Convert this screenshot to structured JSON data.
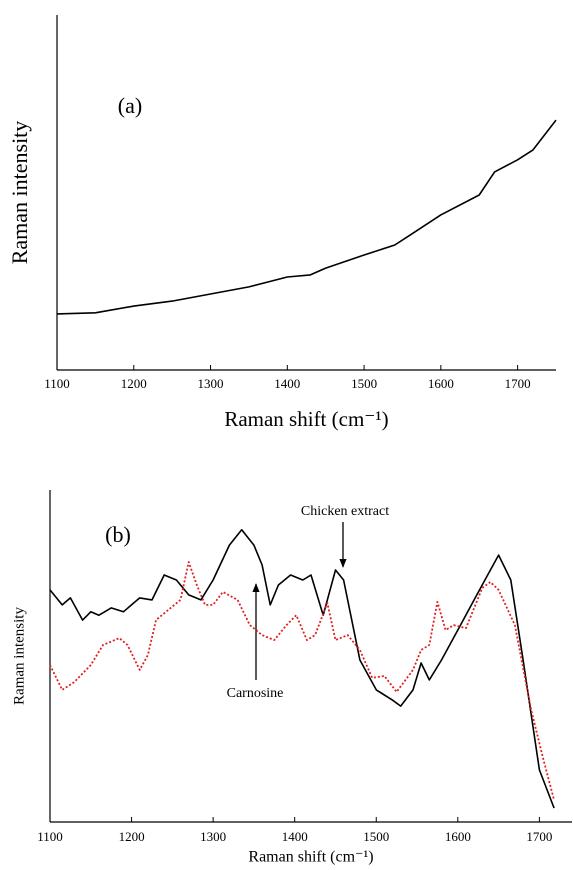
{
  "chart_data": [
    {
      "type": "line",
      "annotation": "(a)",
      "x_label": "Raman shift (cm⁻¹)",
      "y_label": "Raman intensity",
      "xlim": [
        1100,
        1750
      ],
      "xticks": [
        1100,
        1200,
        1300,
        1400,
        1500,
        1600,
        1700
      ],
      "ylim": [
        0,
        100
      ],
      "x": [
        1100,
        1150,
        1200,
        1250,
        1300,
        1350,
        1400,
        1430,
        1450,
        1500,
        1540,
        1560,
        1600,
        1650,
        1670,
        1700,
        1720,
        1750
      ],
      "values": [
        15.8,
        16.1,
        18.0,
        19.4,
        21.4,
        23.4,
        26.2,
        26.8,
        28.7,
        32.4,
        35.2,
        38.0,
        43.7,
        49.3,
        55.8,
        59.2,
        62.0,
        70.4
      ],
      "color": "#000000"
    },
    {
      "type": "line",
      "annotation": "(b)",
      "x_label": "Raman shift (cm⁻¹)",
      "y_label": "Raman intensity",
      "xlim": [
        1100,
        1740
      ],
      "xticks": [
        1100,
        1200,
        1300,
        1400,
        1500,
        1600,
        1700
      ],
      "ylim": [
        0,
        100
      ],
      "series": [
        {
          "name": "Chicken extract",
          "color": "#000000",
          "line_style": "solid",
          "x": [
            1100,
            1115,
            1125,
            1140,
            1150,
            1160,
            1175,
            1190,
            1210,
            1225,
            1240,
            1255,
            1270,
            1285,
            1300,
            1320,
            1335,
            1350,
            1360,
            1370,
            1380,
            1395,
            1410,
            1420,
            1435,
            1450,
            1460,
            1480,
            1500,
            1520,
            1530,
            1545,
            1555,
            1565,
            1580,
            1600,
            1620,
            1640,
            1650,
            1665,
            1680,
            1700,
            1718
          ],
          "values": [
            69.9,
            65.4,
            67.5,
            60.8,
            63.3,
            62.3,
            64.5,
            63.3,
            67.5,
            66.9,
            74.4,
            72.9,
            68.4,
            66.9,
            72.9,
            83.4,
            88.0,
            83.4,
            77.4,
            65.4,
            71.4,
            74.4,
            72.9,
            74.4,
            62.3,
            75.9,
            72.9,
            48.8,
            39.8,
            36.7,
            34.9,
            39.8,
            47.9,
            42.8,
            48.8,
            57.8,
            66.9,
            75.9,
            80.4,
            72.9,
            48.8,
            15.7,
            4.2
          ]
        },
        {
          "name": "Carnosine",
          "color": "#e02020",
          "line_style": "dotted",
          "x": [
            1100,
            1115,
            1130,
            1150,
            1165,
            1185,
            1195,
            1210,
            1220,
            1230,
            1245,
            1260,
            1270,
            1280,
            1290,
            1300,
            1312,
            1330,
            1345,
            1360,
            1375,
            1390,
            1402,
            1415,
            1425,
            1440,
            1450,
            1465,
            1480,
            1495,
            1510,
            1525,
            1545,
            1555,
            1565,
            1575,
            1585,
            1595,
            1610,
            1630,
            1640,
            1650,
            1670,
            1690,
            1705,
            1718
          ],
          "values": [
            47.3,
            39.8,
            42.2,
            47.3,
            53.3,
            55.4,
            53.3,
            45.8,
            50.3,
            60.8,
            63.9,
            66.9,
            78.3,
            71.4,
            65.4,
            65.4,
            69.3,
            66.9,
            59.3,
            56.3,
            54.8,
            59.3,
            62.3,
            54.8,
            56.3,
            66.0,
            54.8,
            56.3,
            51.8,
            43.4,
            44.0,
            39.2,
            45.8,
            51.8,
            53.3,
            66.3,
            57.8,
            59.3,
            58.4,
            70.5,
            72.3,
            69.9,
            59.3,
            33.7,
            18.7,
            6.6
          ]
        }
      ]
    }
  ]
}
